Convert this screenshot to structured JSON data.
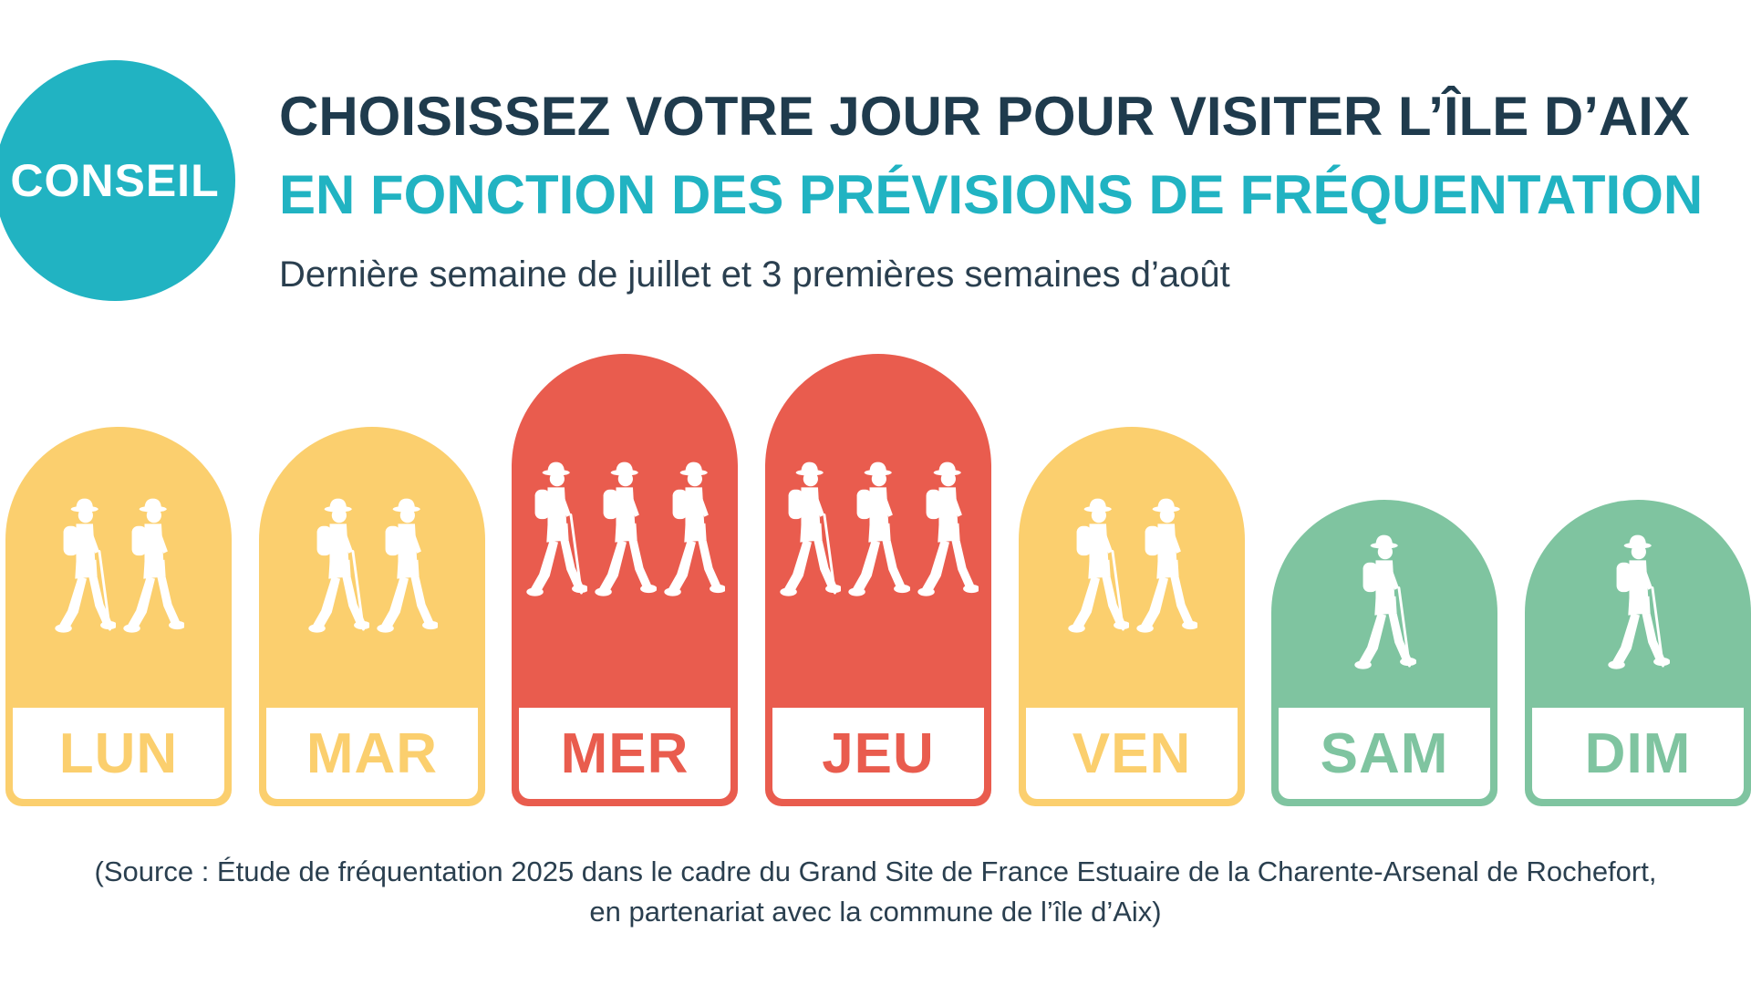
{
  "badge": {
    "label": "CONSEIL",
    "color": "#21b3c2"
  },
  "header": {
    "title_line1": "CHOISISSEZ VOTRE JOUR POUR VISITER L’ÎLE D’AIX",
    "title_line2": "EN FONCTION DES PRÉVISIONS DE FRÉQUENTATION",
    "title_line2_color": "#21b3c2",
    "subtitle": "Dernière semaine de juillet et 3 premières semaines d’août"
  },
  "days": [
    {
      "label": "LUN",
      "level": "medium",
      "hikers": 2,
      "icon": "hiker-icon"
    },
    {
      "label": "MAR",
      "level": "medium",
      "hikers": 2,
      "icon": "hiker-icon"
    },
    {
      "label": "MER",
      "level": "high",
      "hikers": 3,
      "icon": "hiker-icon"
    },
    {
      "label": "JEU",
      "level": "high",
      "hikers": 3,
      "icon": "hiker-icon"
    },
    {
      "label": "VEN",
      "level": "medium",
      "hikers": 2,
      "icon": "hiker-icon"
    },
    {
      "label": "SAM",
      "level": "low",
      "hikers": 1,
      "icon": "hiker-icon"
    },
    {
      "label": "DIM",
      "level": "low",
      "hikers": 1,
      "icon": "hiker-icon"
    }
  ],
  "level_colors": {
    "low": "#7fc4a0",
    "medium": "#fbcf6e",
    "high": "#e95c4e"
  },
  "source": {
    "line1": "(Source : Étude de fréquentation 2025 dans le cadre du Grand Site de France Estuaire de la Charente-Arsenal de Rochefort,",
    "line2": "en partenariat avec la commune de l’île d’Aix)"
  }
}
